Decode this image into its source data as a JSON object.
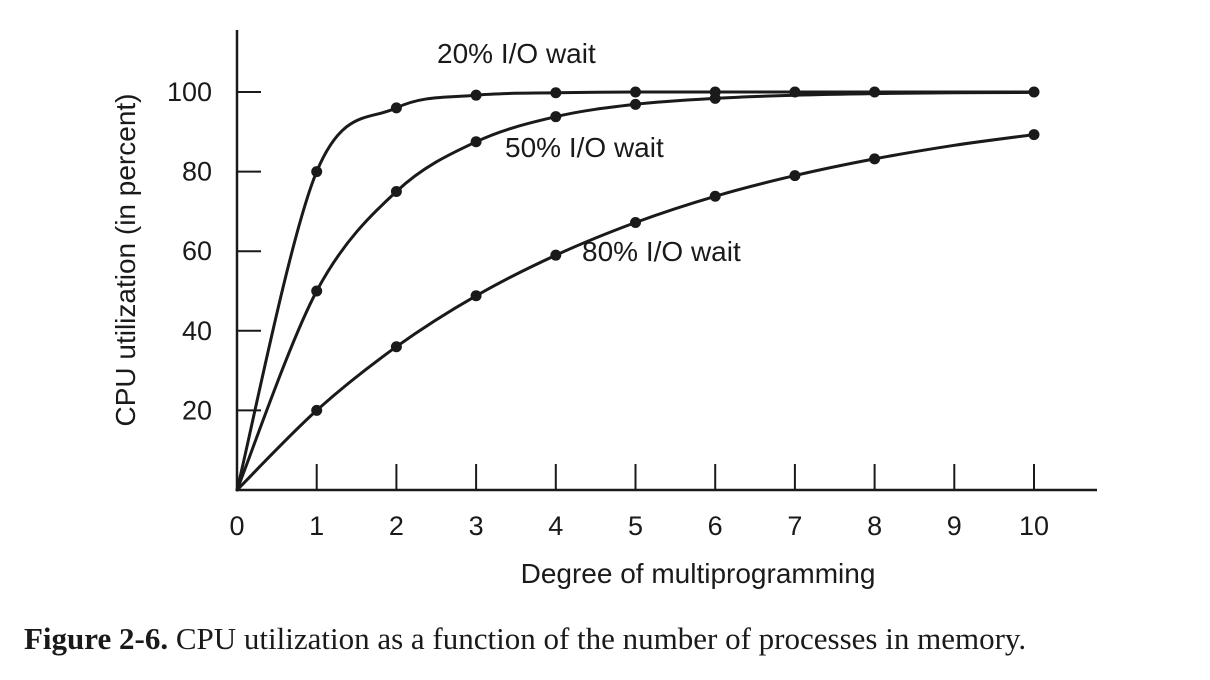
{
  "chart_data": {
    "type": "line",
    "xlabel": "Degree of multiprogramming",
    "ylabel": "CPU utilization (in percent)",
    "xlim": [
      0,
      10.8
    ],
    "ylim": [
      0,
      115
    ],
    "x_ticks": [
      0,
      1,
      2,
      3,
      4,
      5,
      6,
      7,
      8,
      9,
      10
    ],
    "y_ticks": [
      20,
      40,
      60,
      80,
      100
    ],
    "grid": false,
    "legend": "none (curves labeled directly)",
    "series": [
      {
        "name": "20% I/O wait",
        "x": [
          0,
          1,
          2,
          3,
          4,
          5,
          6,
          7,
          8,
          9,
          10
        ],
        "values": [
          0,
          80,
          96,
          99.2,
          99.8,
          100,
          100,
          100,
          100,
          100,
          100
        ],
        "markers_x": [
          1,
          2,
          3,
          4,
          5,
          6
        ]
      },
      {
        "name": "50% I/O wait",
        "x": [
          0,
          1,
          2,
          3,
          4,
          5,
          6,
          7,
          8,
          9,
          10
        ],
        "values": [
          0,
          50,
          75,
          87.5,
          93.8,
          96.9,
          98.4,
          99.2,
          99.6,
          99.8,
          99.9
        ],
        "markers_x": [
          1,
          2,
          3,
          4,
          5,
          6
        ]
      },
      {
        "name": "80% I/O wait",
        "x": [
          0,
          1,
          2,
          3,
          4,
          5,
          6,
          7,
          8,
          9,
          10
        ],
        "values": [
          0,
          20,
          36,
          48.8,
          59,
          67.2,
          73.8,
          79,
          83.2,
          86.6,
          89.3
        ],
        "markers_x": [
          1,
          2,
          3,
          4,
          5,
          6,
          7,
          8,
          10
        ]
      }
    ],
    "tail_markers_at_100": [
      7,
      8,
      10
    ]
  },
  "caption": {
    "label": "Figure 2-6.",
    "text": "CPU utilization as a function of the number of processes in memory."
  },
  "colors": {
    "ink": "#1a1a1a",
    "background": "#ffffff"
  }
}
